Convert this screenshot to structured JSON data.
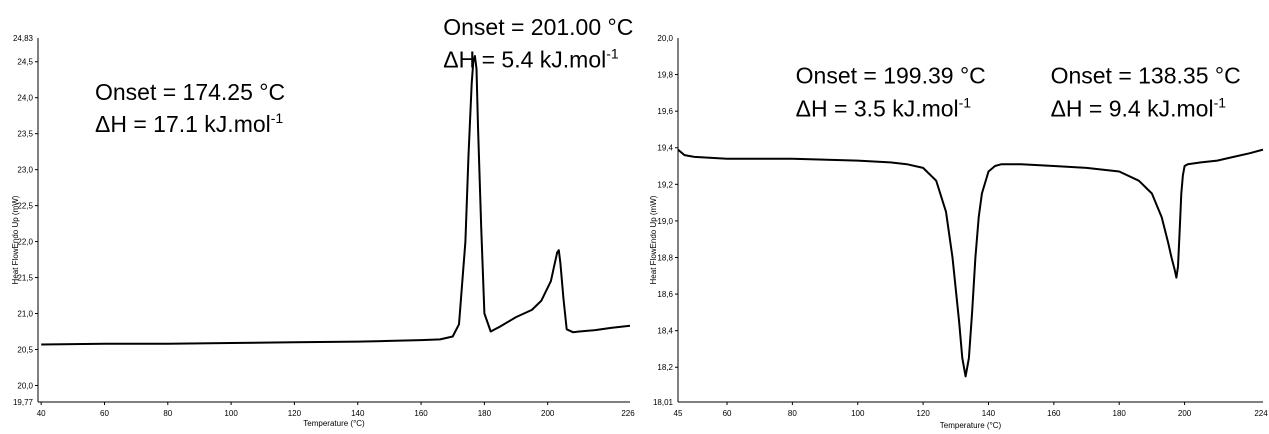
{
  "chart_data": [
    {
      "type": "line",
      "xlabel": "Temperature (°C)",
      "ylabel": "Heat FlowEndo Up (mW)",
      "xlim": [
        39,
        226
      ],
      "ylim": [
        19.77,
        24.83
      ],
      "x_ticks": [
        40,
        60,
        80,
        100,
        120,
        140,
        160,
        180,
        200
      ],
      "x_tick_labels": [
        "40",
        "60",
        "80",
        "100",
        "120",
        "140",
        "160",
        "180",
        "200"
      ],
      "x_end_label": "226",
      "y_ticks": [
        20.0,
        20.5,
        21.0,
        21.5,
        22.0,
        22.5,
        23.0,
        23.5,
        24.0,
        24.5
      ],
      "y_tick_labels": [
        "20,0",
        "20,5",
        "21,0",
        "21,5",
        "22,0",
        "22,5",
        "23,0",
        "23,5",
        "24,0",
        "24,5"
      ],
      "y_min_label": "19,77",
      "y_max_label": "24,83",
      "series": [
        {
          "x": [
            40,
            60,
            80,
            100,
            120,
            140,
            150,
            160,
            166,
            170,
            172,
            174,
            175,
            176,
            176.5,
            177,
            177.5,
            178,
            179,
            180,
            182,
            185,
            190,
            195,
            198,
            201,
            202,
            203,
            203.5,
            204,
            205,
            206,
            208,
            210,
            215,
            220,
            226
          ],
          "y": [
            20.57,
            20.58,
            20.58,
            20.59,
            20.6,
            20.61,
            20.62,
            20.63,
            20.64,
            20.68,
            20.85,
            22.0,
            23.2,
            24.2,
            24.5,
            24.58,
            24.4,
            23.6,
            22.2,
            21.0,
            20.75,
            20.82,
            20.95,
            21.05,
            21.18,
            21.45,
            21.65,
            21.85,
            21.88,
            21.7,
            21.2,
            20.78,
            20.74,
            20.75,
            20.77,
            20.8,
            20.83
          ]
        }
      ],
      "annotations": [
        {
          "text": "Onset = 174.25 °C",
          "x_data": 57,
          "y_data": 23.97
        },
        {
          "text": "ΔH = 17.1 kJ.mol",
          "sup": "-1",
          "x_data": 57,
          "y_data": 23.52
        },
        {
          "text": "Onset = 201.00 °C",
          "x_data": 167,
          "y_data": 24.87
        },
        {
          "text": "ΔH = 5.4 kJ.mol",
          "sup": "-1",
          "x_data": 167,
          "y_data": 24.42
        }
      ]
    },
    {
      "type": "line",
      "xlabel": "Temperature (°C)",
      "ylabel": "Heat FlowEndo Up (mW)",
      "xlim": [
        45,
        224
      ],
      "ylim": [
        18.01,
        20.0
      ],
      "x_ticks": [
        60,
        80,
        100,
        120,
        140,
        160,
        180,
        200
      ],
      "x_tick_labels": [
        "60",
        "80",
        "100",
        "120",
        "140",
        "160",
        "180",
        "200"
      ],
      "x_start_label": "45",
      "x_end_label": "224",
      "y_ticks": [
        18.2,
        18.4,
        18.6,
        18.8,
        19.0,
        19.2,
        19.4,
        19.6,
        19.8
      ],
      "y_tick_labels": [
        "18,2",
        "18,4",
        "18,6",
        "18,8",
        "19,0",
        "19,2",
        "19,4",
        "19,6",
        "19,8"
      ],
      "y_min_label": "18,01",
      "y_max_label": "20,0",
      "series": [
        {
          "x": [
            45,
            47,
            50,
            60,
            80,
            100,
            110,
            115,
            120,
            124,
            127,
            129,
            131,
            132,
            133,
            134,
            135,
            136,
            137,
            138,
            140,
            142,
            144,
            146,
            150,
            160,
            170,
            180,
            186,
            190,
            193,
            195,
            196,
            197,
            197.5,
            198,
            198.5,
            199,
            199.5,
            200,
            201,
            205,
            210,
            215,
            220,
            224
          ],
          "y": [
            19.39,
            19.36,
            19.35,
            19.34,
            19.34,
            19.33,
            19.32,
            19.31,
            19.29,
            19.22,
            19.05,
            18.8,
            18.45,
            18.25,
            18.15,
            18.25,
            18.5,
            18.8,
            19.02,
            19.15,
            19.27,
            19.3,
            19.31,
            19.31,
            19.31,
            19.3,
            19.29,
            19.27,
            19.22,
            19.15,
            19.02,
            18.88,
            18.8,
            18.73,
            18.69,
            18.75,
            18.95,
            19.15,
            19.25,
            19.3,
            19.31,
            19.32,
            19.33,
            19.35,
            19.37,
            19.39
          ]
        }
      ],
      "annotations": [
        {
          "text": "Onset = 199.39 °C",
          "x_data": 81,
          "y_data": 19.75
        },
        {
          "text": "ΔH = 3.5 kJ.mol",
          "sup": "-1",
          "x_data": 81,
          "y_data": 19.57
        },
        {
          "text": "Onset = 138.35 °C",
          "x_data": 159,
          "y_data": 19.75
        },
        {
          "text": "ΔH = 9.4 kJ.mol",
          "sup": "-1",
          "x_data": 159,
          "y_data": 19.57
        }
      ]
    }
  ],
  "colors": {
    "curve": "#000000",
    "frame": "#000000",
    "background": "#ffffff"
  }
}
